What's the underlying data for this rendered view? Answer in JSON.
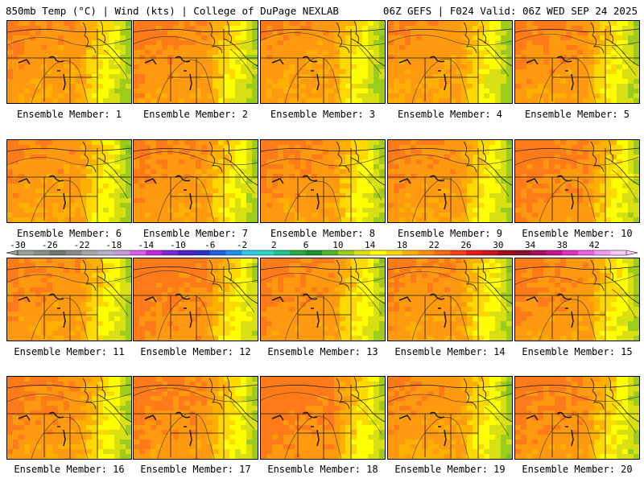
{
  "header": {
    "left": "850mb Temp (°C) | Wind (kts) | College of DuPage NEXLAB",
    "right": "06Z GEFS | F024 Valid: 06Z WED SEP 24 2025"
  },
  "caption_prefix": "Ensemble Member: ",
  "members": [
    {
      "number": "1",
      "warmth": 0.35,
      "seed": 11
    },
    {
      "number": "2",
      "warmth": 0.45,
      "seed": 23
    },
    {
      "number": "3",
      "warmth": 0.3,
      "seed": 37
    },
    {
      "number": "4",
      "warmth": 0.3,
      "seed": 41
    },
    {
      "number": "5",
      "warmth": 0.4,
      "seed": 53
    },
    {
      "number": "6",
      "warmth": 0.35,
      "seed": 67
    },
    {
      "number": "7",
      "warmth": 0.4,
      "seed": 71
    },
    {
      "number": "8",
      "warmth": 0.45,
      "seed": 83
    },
    {
      "number": "9",
      "warmth": 0.4,
      "seed": 97
    },
    {
      "number": "10",
      "warmth": 0.55,
      "seed": 101
    },
    {
      "number": "11",
      "warmth": 0.4,
      "seed": 113
    },
    {
      "number": "12",
      "warmth": 0.6,
      "seed": 127
    },
    {
      "number": "13",
      "warmth": 0.45,
      "seed": 131
    },
    {
      "number": "14",
      "warmth": 0.4,
      "seed": 149
    },
    {
      "number": "15",
      "warmth": 0.45,
      "seed": 151
    },
    {
      "number": "16",
      "warmth": 0.45,
      "seed": 163
    },
    {
      "number": "17",
      "warmth": 0.5,
      "seed": 173
    },
    {
      "number": "18",
      "warmth": 0.65,
      "seed": 181
    },
    {
      "number": "19",
      "warmth": 0.35,
      "seed": 191
    },
    {
      "number": "20",
      "warmth": 0.5,
      "seed": 199
    }
  ],
  "colorbar": {
    "labels": [
      "-30",
      "-26",
      "-22",
      "-18",
      "-14",
      "-10",
      "-6",
      "-2",
      "2",
      "6",
      "10",
      "14",
      "18",
      "22",
      "26",
      "30",
      "34",
      "38",
      "42"
    ],
    "colors": [
      "#9aa39a",
      "#889088",
      "#6e776e",
      "#8a8a8a",
      "#a7a7a7",
      "#b5b0c8",
      "#c69ad8",
      "#d85ee8",
      "#c028e0",
      "#7a28d0",
      "#5020c8",
      "#2830c8",
      "#2060e0",
      "#1e90f0",
      "#30c8e8",
      "#28d8c0",
      "#20c090",
      "#2aaa40",
      "#1e9030",
      "#4cb82e",
      "#9ccc1c",
      "#d8e014",
      "#ffff00",
      "#ffd800",
      "#ffb000",
      "#ff8c00",
      "#ff6a10",
      "#ff4018",
      "#e81818",
      "#c8141c",
      "#a01020",
      "#8a0e30",
      "#a80e58",
      "#c81090",
      "#e030c0",
      "#f060e0",
      "#f898ee",
      "#fcc8f6"
    ]
  }
}
